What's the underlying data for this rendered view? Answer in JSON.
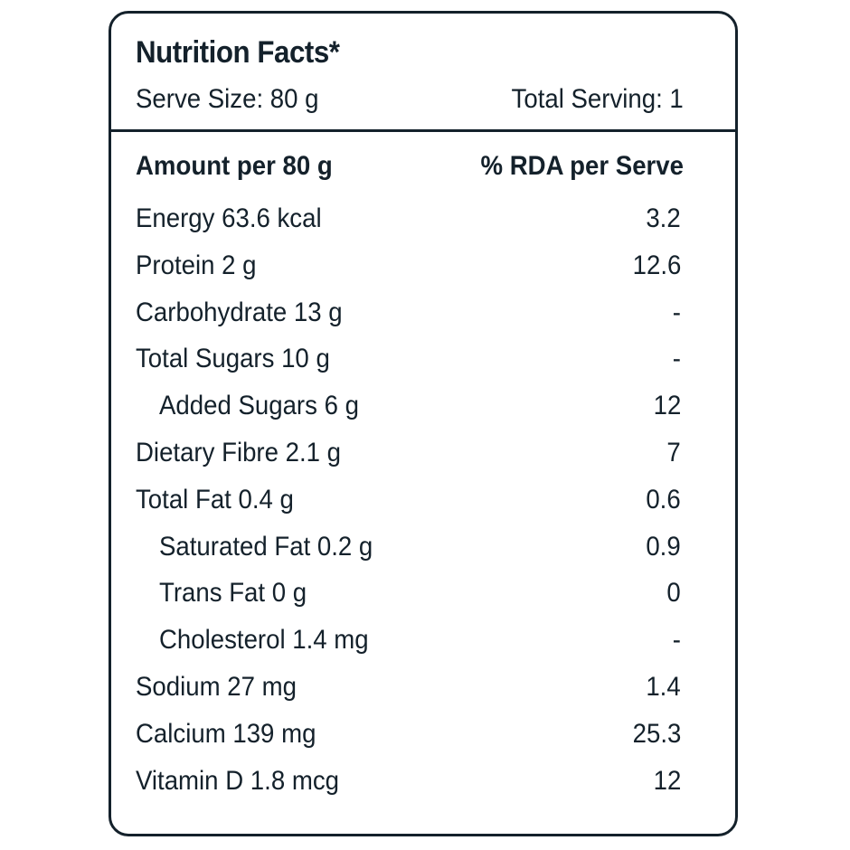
{
  "header": {
    "title": "Nutrition Facts*",
    "serve_size": "Serve Size: 80 g",
    "total_serving": "Total Serving: 1"
  },
  "columns": {
    "amount_label": "Amount per 80 g",
    "rda_label": "% RDA per Serve"
  },
  "rows": [
    {
      "nutrient": "Energy 63.6 kcal",
      "rda": "3.2"
    },
    {
      "nutrient": "Protein 2 g",
      "rda": "12.6"
    },
    {
      "nutrient": "Carbohydrate 13 g",
      "rda": "-"
    },
    {
      "nutrient": "Total Sugars 10 g",
      "rda": "-"
    },
    {
      "nutrient": "Added Sugars 6 g",
      "rda": "12"
    },
    {
      "nutrient": "Dietary Fibre 2.1 g",
      "rda": "7"
    },
    {
      "nutrient": "Total Fat 0.4 g",
      "rda": "0.6"
    },
    {
      "nutrient": "Saturated Fat 0.2 g",
      "rda": "0.9"
    },
    {
      "nutrient": "Trans Fat 0 g",
      "rda": "0"
    },
    {
      "nutrient": "Cholesterol 1.4 mg",
      "rda": "-"
    },
    {
      "nutrient": "Sodium 27 mg",
      "rda": "1.4"
    },
    {
      "nutrient": "Calcium 139 mg",
      "rda": "25.3"
    },
    {
      "nutrient": "Vitamin D 1.8 mcg",
      "rda": "12"
    }
  ],
  "colors": {
    "text": "#14212b",
    "border": "#14212b",
    "background": "#ffffff"
  }
}
